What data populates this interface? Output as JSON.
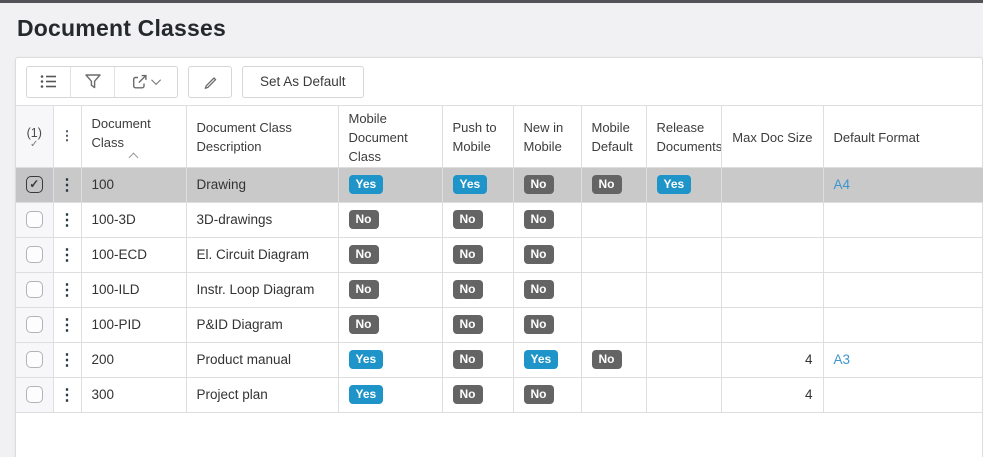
{
  "page": {
    "title": "Document Classes"
  },
  "toolbar": {
    "icons": [
      "list-view",
      "filter",
      "export",
      "chevron-down",
      "edit"
    ],
    "set_as_default_label": "Set As Default"
  },
  "table": {
    "columns": [
      "(1)",
      "",
      "Document Class",
      "Document Class Description",
      "Mobile Document Class",
      "Push to Mobile",
      "New in Mobile",
      "Mobile Default",
      "Release Documents",
      "Max Doc Size",
      "Default Format"
    ],
    "sort": {
      "column": "Document Class",
      "direction": "ascending"
    },
    "selected_count": 1,
    "rows": [
      {
        "selected": true,
        "document_class": "100",
        "description": "Drawing",
        "mobile_document_class": "Yes",
        "push_to_mobile": "Yes",
        "new_in_mobile": "No",
        "mobile_default": "No",
        "release_documents": "Yes",
        "max_doc_size": "",
        "default_format": "A4"
      },
      {
        "selected": false,
        "document_class": "100-3D",
        "description": "3D-drawings",
        "mobile_document_class": "No",
        "push_to_mobile": "No",
        "new_in_mobile": "No",
        "mobile_default": "",
        "release_documents": "",
        "max_doc_size": "",
        "default_format": ""
      },
      {
        "selected": false,
        "document_class": "100-ECD",
        "description": "El. Circuit Diagram",
        "mobile_document_class": "No",
        "push_to_mobile": "No",
        "new_in_mobile": "No",
        "mobile_default": "",
        "release_documents": "",
        "max_doc_size": "",
        "default_format": ""
      },
      {
        "selected": false,
        "document_class": "100-ILD",
        "description": "Instr. Loop Diagram",
        "mobile_document_class": "No",
        "push_to_mobile": "No",
        "new_in_mobile": "No",
        "mobile_default": "",
        "release_documents": "",
        "max_doc_size": "",
        "default_format": ""
      },
      {
        "selected": false,
        "document_class": "100-PID",
        "description": "P&ID Diagram",
        "mobile_document_class": "No",
        "push_to_mobile": "No",
        "new_in_mobile": "No",
        "mobile_default": "",
        "release_documents": "",
        "max_doc_size": "",
        "default_format": ""
      },
      {
        "selected": false,
        "document_class": "200",
        "description": "Product manual",
        "mobile_document_class": "Yes",
        "push_to_mobile": "No",
        "new_in_mobile": "Yes",
        "mobile_default": "No",
        "release_documents": "",
        "max_doc_size": "4",
        "default_format": "A3"
      },
      {
        "selected": false,
        "document_class": "300",
        "description": "Project plan",
        "mobile_document_class": "Yes",
        "push_to_mobile": "No",
        "new_in_mobile": "No",
        "mobile_default": "",
        "release_documents": "",
        "max_doc_size": "4",
        "default_format": ""
      }
    ]
  },
  "colors": {
    "yes_badge": "#1e94c8",
    "no_badge": "#646464",
    "link": "#3d95cd",
    "selected_row": "#c9c9c9"
  }
}
